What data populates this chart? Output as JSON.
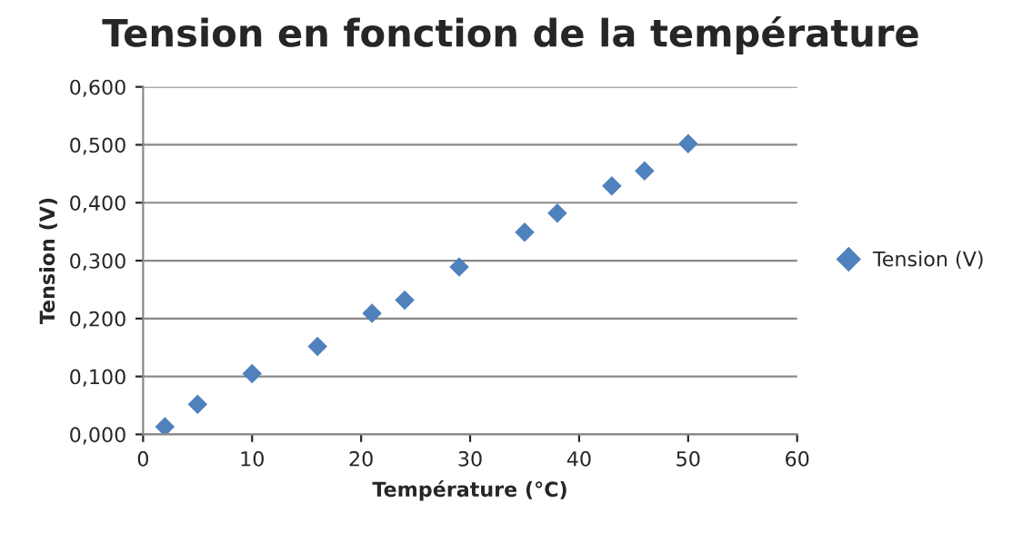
{
  "chart_data": {
    "type": "scatter",
    "title": "Tension en fonction de la température",
    "xlabel": "Température (°C)",
    "ylabel": "Tension (V)",
    "x": [
      2,
      5,
      10,
      16,
      21,
      24,
      29,
      35,
      38,
      43,
      46,
      50
    ],
    "series": [
      {
        "name": "Tension (V)",
        "color": "#4f81bd",
        "values": [
          0.013,
          0.052,
          0.105,
          0.152,
          0.209,
          0.232,
          0.289,
          0.349,
          0.382,
          0.429,
          0.455,
          0.502
        ]
      }
    ],
    "xlim": [
      0,
      60
    ],
    "xticks": [
      0,
      10,
      20,
      30,
      40,
      50,
      60
    ],
    "ylim": [
      0,
      0.6
    ],
    "yticks": [
      {
        "value": 0,
        "label": "0,000"
      },
      {
        "value": 0.1,
        "label": "0,100"
      },
      {
        "value": 0.2,
        "label": "0,200"
      },
      {
        "value": 0.3,
        "label": "0,300"
      },
      {
        "value": 0.4,
        "label": "0,400"
      },
      {
        "value": 0.5,
        "label": "0,500"
      },
      {
        "value": 0.6,
        "label": "0,600"
      }
    ],
    "grid": "y",
    "legend": "right",
    "marker": "diamond"
  }
}
